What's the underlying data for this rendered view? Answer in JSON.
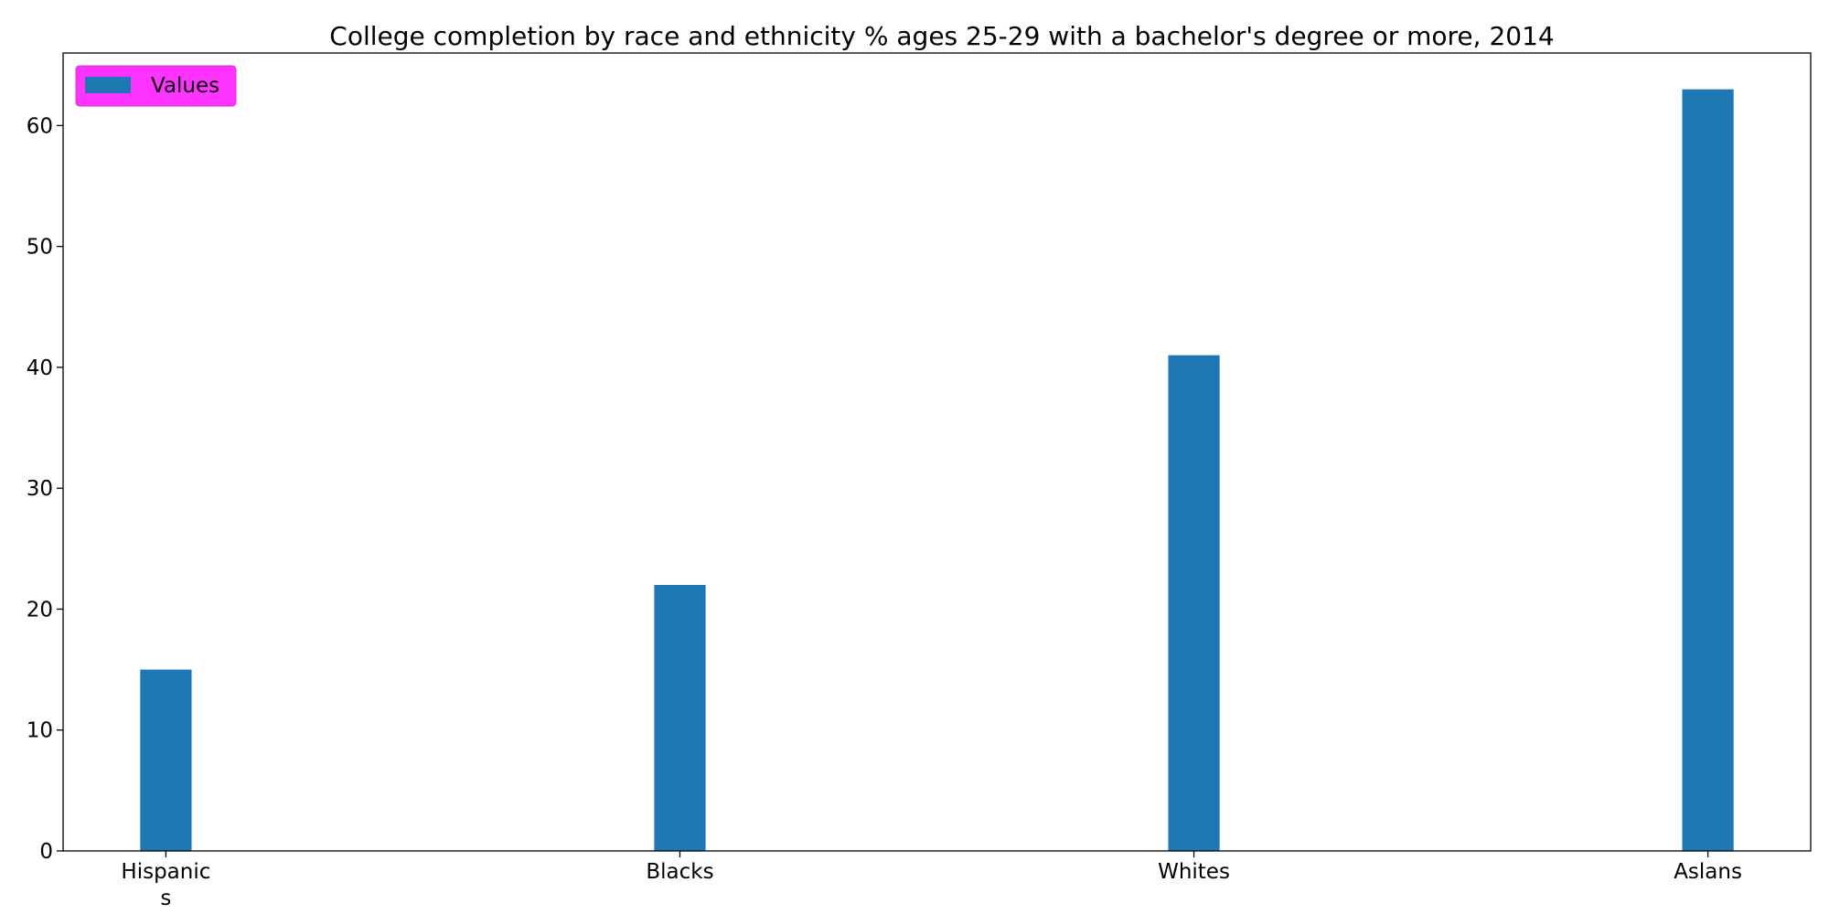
{
  "chart_data": {
    "type": "bar",
    "title": "College completion by race and ethnicity % ages 25-29 with a bachelor's degree or more, 2014",
    "categories": [
      [
        "Hispanic",
        "s"
      ],
      [
        "Blacks"
      ],
      [
        "Whites"
      ],
      [
        "Aslans"
      ]
    ],
    "series": [
      {
        "name": "Values",
        "values": [
          15,
          22,
          41,
          63
        ],
        "color": "#1f77b4"
      }
    ],
    "xlabel": "",
    "ylabel": "",
    "ylim": [
      0,
      66
    ],
    "yticks": [
      0,
      10,
      20,
      30,
      40,
      50,
      60
    ],
    "grid": false,
    "legend": {
      "placement": "top-left",
      "background": "#ff33ff",
      "border": "#cc33cc"
    }
  }
}
